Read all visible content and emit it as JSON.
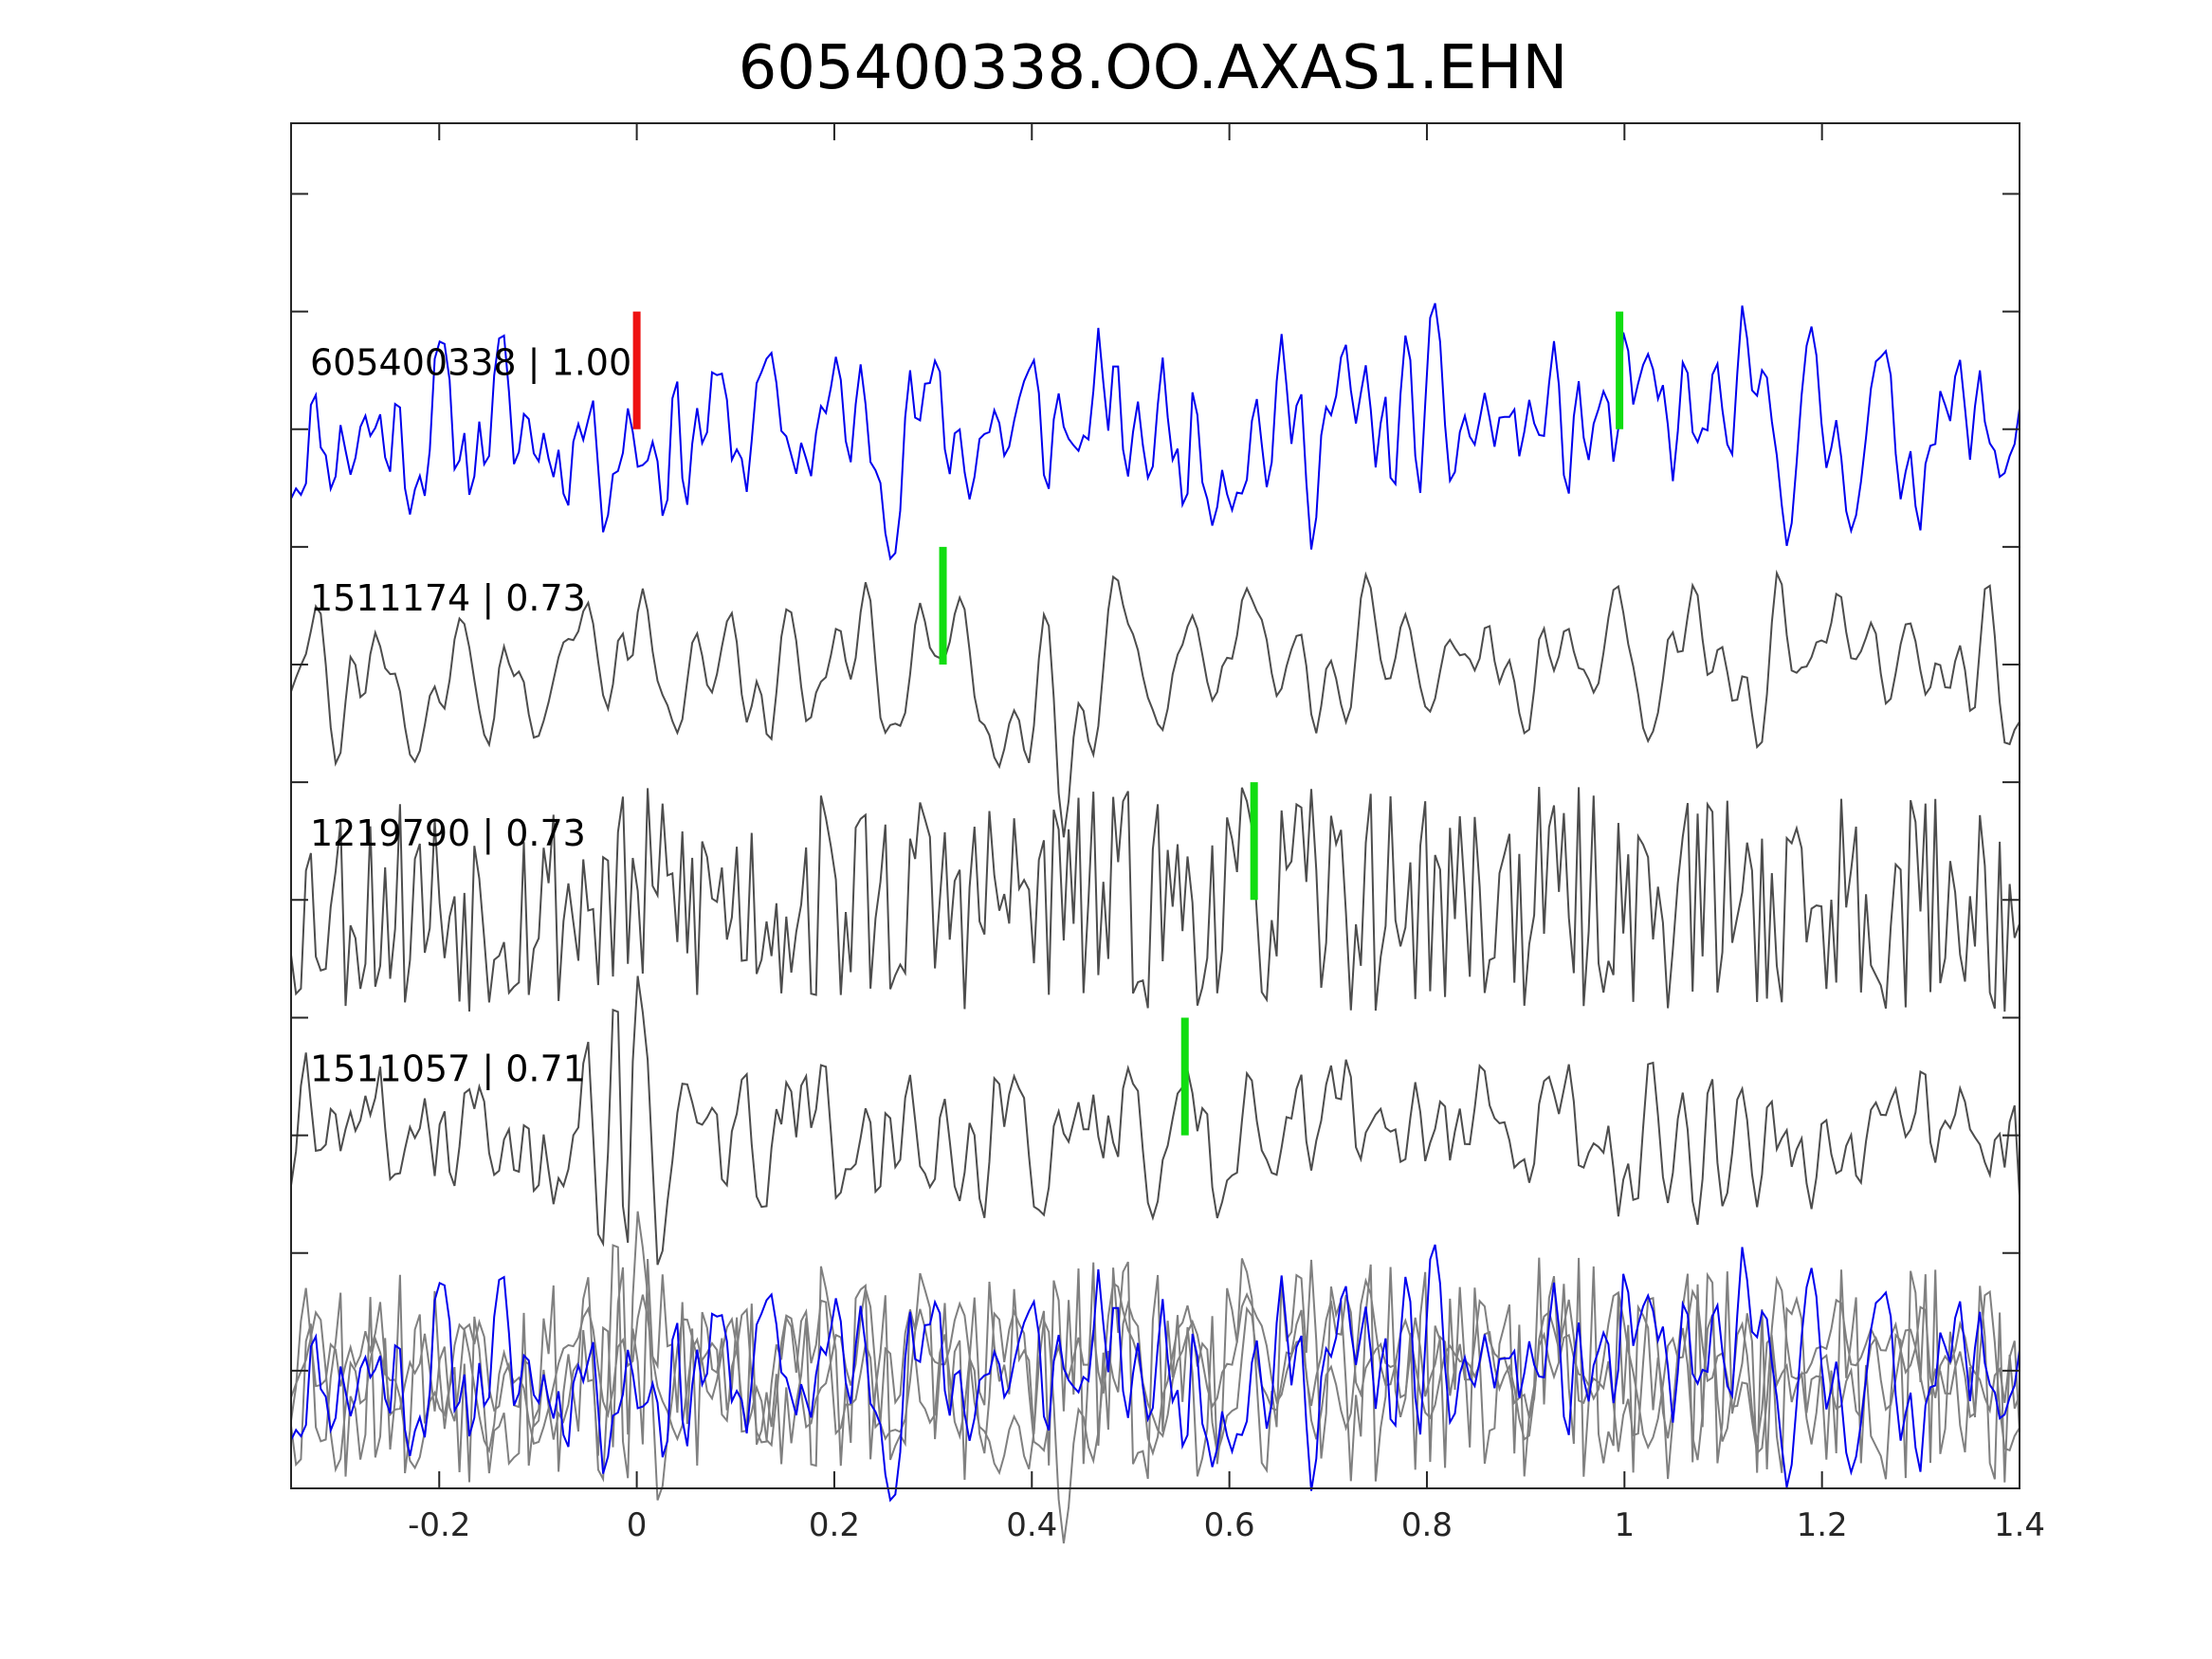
{
  "chart_data": {
    "type": "line",
    "title": "605400338.OO.AXAS1.EHN",
    "xlabel": "",
    "ylabel": "",
    "xlim": [
      -0.35,
      1.4
    ],
    "xticks": [
      -0.2,
      0,
      0.2,
      0.4,
      0.6,
      0.8,
      1,
      1.2,
      1.4
    ],
    "xtick_labels": [
      "-0.2",
      "0",
      "0.2",
      "0.4",
      "0.6",
      "0.8",
      "1",
      "1.2",
      "1.4"
    ],
    "ylim": [
      -0.5,
      5.3
    ],
    "grid": false,
    "legend": "none",
    "colors": {
      "primary_trace": "#0000ee",
      "match_trace": "#4d4d4d",
      "overlay_match": "#808080",
      "pick_red": "#ee1111",
      "pick_green": "#11dd11",
      "axes": "#262626"
    },
    "series": [
      {
        "label": "605400338 | 1.00",
        "baseline": 4,
        "color": "blue",
        "pick_time": 0.0,
        "pick_color": "red",
        "secondary_pick_time": 0.995,
        "secondary_pick_color": "green"
      },
      {
        "label": "1511174 | 0.73",
        "baseline": 3,
        "color": "gray",
        "pick_time": 0.31,
        "pick_color": "green"
      },
      {
        "label": "1219790 | 0.73",
        "baseline": 2,
        "color": "gray",
        "pick_time": 0.625,
        "pick_color": "green"
      },
      {
        "label": "1511057 | 0.71",
        "baseline": 1,
        "color": "gray",
        "pick_time": 0.555,
        "pick_color": "green"
      }
    ],
    "overlay": {
      "baseline": 0,
      "description_traces": "all traces stacked"
    }
  }
}
